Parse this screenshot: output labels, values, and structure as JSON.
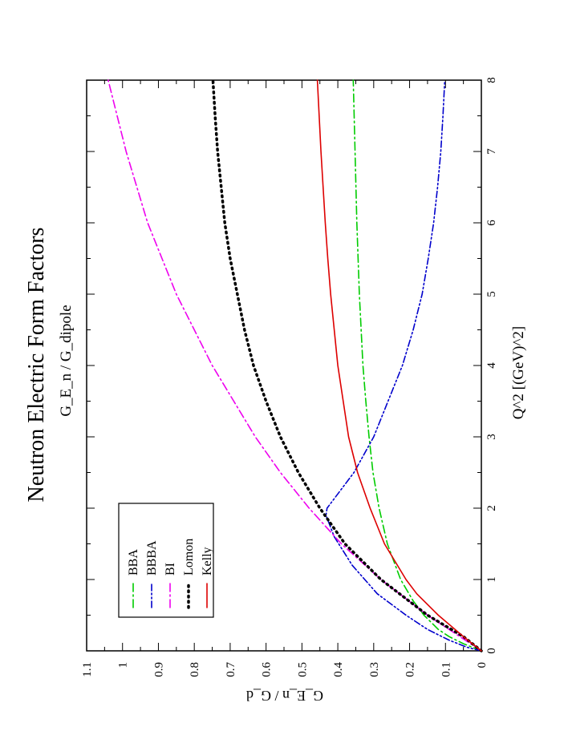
{
  "chart_data": {
    "type": "line",
    "orientation": "rotated-90",
    "title": "Neutron Electric Form Factors",
    "subtitle": "G_E_n / G_dipole",
    "xlabel": "Q^2 [(GeV)^2]",
    "ylabel": "G_E_n / G_d",
    "xlim": [
      0,
      8
    ],
    "ylim": [
      0,
      1.1
    ],
    "x_ticks": [
      "0",
      "1",
      "2",
      "3",
      "4",
      "5",
      "6",
      "7",
      "8"
    ],
    "y_ticks": [
      "0",
      "0.1",
      "0.2",
      "0.3",
      "0.4",
      "0.5",
      "0.6",
      "0.7",
      "0.8",
      "0.9",
      "1",
      "1.1"
    ],
    "legend_position": "top-left",
    "series": [
      {
        "name": "BBA",
        "color": "#00cc00",
        "style": "dash-dot",
        "x": [
          0,
          0.1,
          0.2,
          0.3,
          0.5,
          0.7,
          1.0,
          1.5,
          2.0,
          2.5,
          3.0,
          3.5,
          4.0,
          5.0,
          6.0,
          7.0,
          8.0
        ],
        "values": [
          0,
          0.05,
          0.09,
          0.12,
          0.16,
          0.19,
          0.225,
          0.262,
          0.285,
          0.302,
          0.313,
          0.322,
          0.33,
          0.34,
          0.347,
          0.352,
          0.357
        ]
      },
      {
        "name": "BBBA",
        "color": "#0000cc",
        "style": "dash-dot-dot",
        "x": [
          0,
          0.05,
          0.15,
          0.3,
          0.5,
          0.8,
          1.2,
          1.6,
          1.9,
          2.0,
          2.2,
          2.5,
          3.0,
          3.5,
          4.0,
          4.5,
          5.0,
          5.5,
          6.0,
          6.5,
          7.0,
          7.5,
          8.0
        ],
        "values": [
          0,
          0.04,
          0.09,
          0.15,
          0.21,
          0.29,
          0.36,
          0.41,
          0.433,
          0.43,
          0.4,
          0.355,
          0.3,
          0.26,
          0.22,
          0.19,
          0.165,
          0.148,
          0.133,
          0.122,
          0.113,
          0.107,
          0.102
        ]
      },
      {
        "name": "BI",
        "color": "#ee00ee",
        "style": "dash-dot",
        "x": [
          0,
          0.2,
          0.5,
          1.0,
          1.5,
          2.0,
          2.5,
          3.0,
          3.5,
          4.0,
          4.5,
          5.0,
          5.5,
          6.0,
          6.5,
          7.0,
          7.5,
          8.0
        ],
        "values": [
          0,
          0.06,
          0.15,
          0.28,
          0.39,
          0.48,
          0.56,
          0.63,
          0.69,
          0.75,
          0.8,
          0.85,
          0.89,
          0.93,
          0.96,
          0.99,
          1.015,
          1.04
        ]
      },
      {
        "name": "Lomon",
        "color": "#000000",
        "style": "dotted",
        "x": [
          0,
          0.2,
          0.5,
          1.0,
          1.5,
          2.0,
          2.5,
          3.0,
          3.5,
          4.0,
          4.5,
          5.0,
          5.5,
          6.0,
          6.5,
          7.0,
          7.5,
          8.0
        ],
        "values": [
          0,
          0.05,
          0.15,
          0.28,
          0.38,
          0.45,
          0.51,
          0.56,
          0.6,
          0.635,
          0.66,
          0.68,
          0.7,
          0.715,
          0.725,
          0.735,
          0.742,
          0.748
        ]
      },
      {
        "name": "Kelly",
        "color": "#dd0000",
        "style": "solid",
        "x": [
          0,
          0.2,
          0.5,
          0.8,
          1.0,
          1.5,
          2.0,
          2.5,
          3.0,
          3.5,
          4.0,
          4.5,
          5.0,
          5.5,
          6.0,
          6.5,
          7.0,
          7.5,
          8.0
        ],
        "values": [
          0,
          0.05,
          0.12,
          0.18,
          0.21,
          0.27,
          0.31,
          0.345,
          0.37,
          0.385,
          0.4,
          0.41,
          0.42,
          0.428,
          0.435,
          0.441,
          0.447,
          0.452,
          0.457
        ]
      }
    ]
  }
}
